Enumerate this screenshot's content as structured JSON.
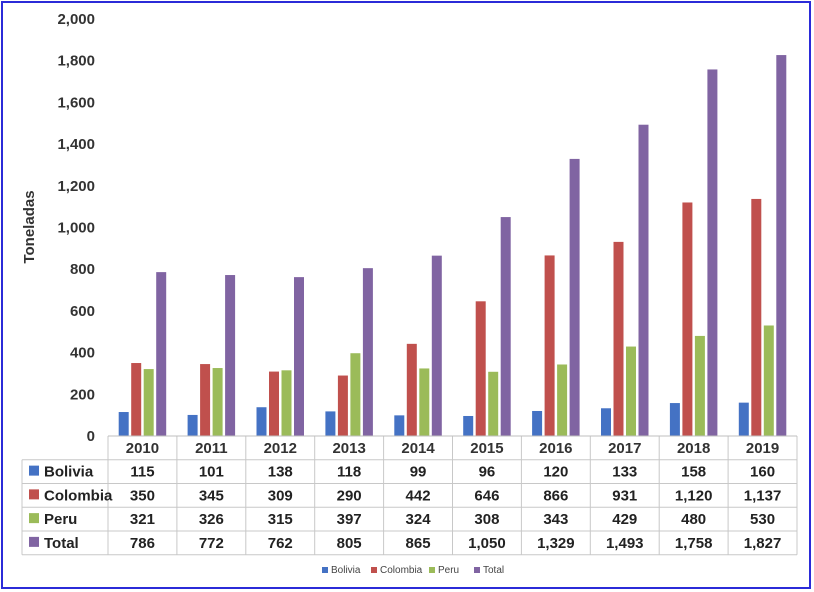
{
  "chart_data": {
    "type": "bar",
    "ylabel": "Toneladas",
    "ylim": [
      0,
      2000
    ],
    "yticks": [
      0,
      200,
      400,
      600,
      800,
      1000,
      1200,
      1400,
      1600,
      1800,
      2000
    ],
    "ytick_labels": [
      "0",
      "200",
      "400",
      "600",
      "800",
      "1,000",
      "1,200",
      "1,400",
      "1,600",
      "1,800",
      "2,000"
    ],
    "grid": false,
    "legend": "bottom",
    "categories": [
      "2010",
      "2011",
      "2012",
      "2013",
      "2014",
      "2015",
      "2016",
      "2017",
      "2018",
      "2019"
    ],
    "series": [
      {
        "name": "Bolivia",
        "color": "#4472c4",
        "values": [
          115,
          101,
          138,
          118,
          99,
          96,
          120,
          133,
          158,
          160
        ],
        "labels": [
          "115",
          "101",
          "138",
          "118",
          "99",
          "96",
          "120",
          "133",
          "158",
          "160"
        ]
      },
      {
        "name": "Colombia",
        "color": "#c0504d",
        "values": [
          350,
          345,
          309,
          290,
          442,
          646,
          866,
          931,
          1120,
          1137
        ],
        "labels": [
          "350",
          "345",
          "309",
          "290",
          "442",
          "646",
          "866",
          "931",
          "1,120",
          "1,137"
        ]
      },
      {
        "name": "Peru",
        "color": "#9bbb59",
        "values": [
          321,
          326,
          315,
          397,
          324,
          308,
          343,
          429,
          480,
          530
        ],
        "labels": [
          "321",
          "326",
          "315",
          "397",
          "324",
          "308",
          "343",
          "429",
          "480",
          "530"
        ]
      },
      {
        "name": "Total",
        "color": "#8064a2",
        "values": [
          786,
          772,
          762,
          805,
          865,
          1050,
          1329,
          1493,
          1758,
          1827
        ],
        "labels": [
          "786",
          "772",
          "762",
          "805",
          "865",
          "1,050",
          "1,329",
          "1,493",
          "1,758",
          "1,827"
        ]
      }
    ]
  }
}
